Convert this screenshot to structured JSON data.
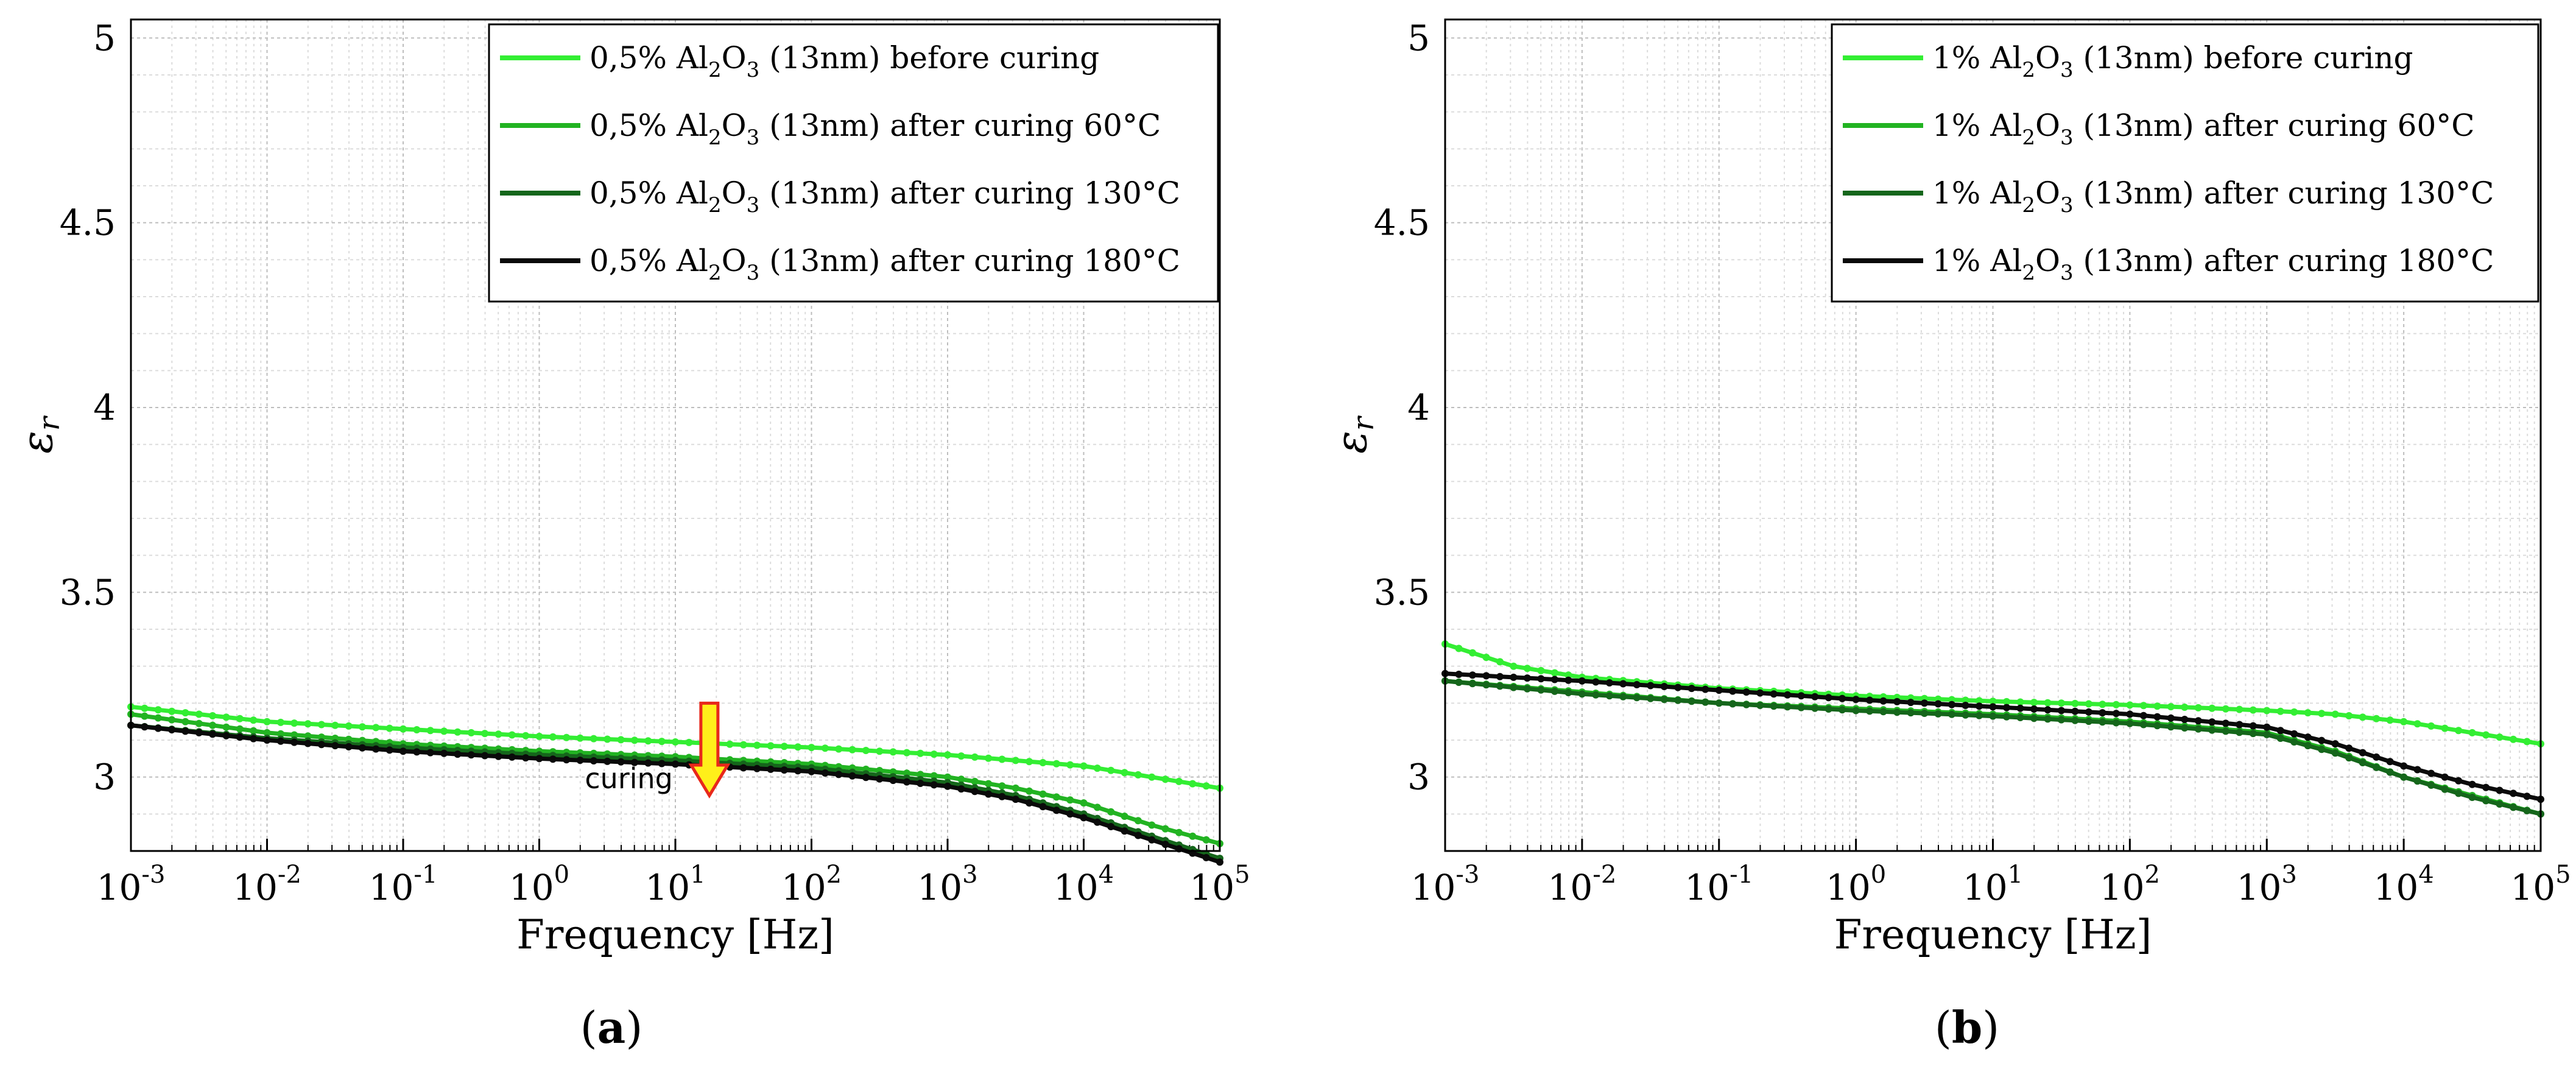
{
  "chart_data": [
    {
      "type": "line",
      "panel_label": "a",
      "xlabel": "Frequency [Hz]",
      "ylabel_symbol": "ε",
      "ylabel_subscript": "r",
      "xscale": "log",
      "xlim_exponent": [
        -3,
        5
      ],
      "ylim": [
        2.8,
        5.05
      ],
      "x_tick_exponents": [
        "-3",
        "-2",
        "-1",
        "0",
        "1",
        "2",
        "3",
        "4",
        "5"
      ],
      "y_ticks": [
        "3",
        "3.5",
        "4",
        "4.5",
        "5"
      ],
      "grid": true,
      "legend_position": "top-right",
      "annotation": {
        "text": "curing",
        "arrow": "down",
        "x_exponent": 1.25,
        "y_from": 3.2,
        "y_to": 2.95
      },
      "series": [
        {
          "name_prefix": "0,5% Al",
          "sub1": "2",
          "name_mid": "O",
          "sub2": "3",
          "name_suffix": " (13nm) before curing",
          "color": "#33ee33",
          "x_exponents": [
            -3,
            -2,
            -1,
            0,
            1,
            2,
            3,
            3.5,
            4,
            4.5,
            5
          ],
          "values": [
            3.19,
            3.15,
            3.13,
            3.11,
            3.095,
            3.08,
            3.06,
            3.045,
            3.03,
            3.0,
            2.97
          ]
        },
        {
          "name_prefix": "0,5% Al",
          "sub1": "2",
          "name_mid": "O",
          "sub2": "3",
          "name_suffix": " (13nm) after curing 60°C",
          "color": "#22b322",
          "x_exponents": [
            -3,
            -2,
            -1,
            0,
            1,
            2,
            3,
            3.5,
            4,
            4.5,
            5
          ],
          "values": [
            3.17,
            3.12,
            3.09,
            3.07,
            3.055,
            3.035,
            3.0,
            2.97,
            2.93,
            2.87,
            2.82
          ]
        },
        {
          "name_prefix": "0,5% Al",
          "sub1": "2",
          "name_mid": "O",
          "sub2": "3",
          "name_suffix": " (13nm) after curing 130°C",
          "color": "#15661b",
          "x_exponents": [
            -3,
            -2,
            -1,
            0,
            1,
            2,
            3,
            3.5,
            4,
            4.5,
            5
          ],
          "values": [
            3.14,
            3.105,
            3.08,
            3.06,
            3.045,
            3.025,
            2.985,
            2.95,
            2.9,
            2.84,
            2.78
          ]
        },
        {
          "name_prefix": "0,5% Al",
          "sub1": "2",
          "name_mid": "O",
          "sub2": "3",
          "name_suffix": " (13nm) after curing 180°C",
          "color": "#0a0a0a",
          "x_exponents": [
            -3,
            -2,
            -1,
            0,
            1,
            2,
            3,
            3.5,
            4,
            4.5,
            5
          ],
          "values": [
            3.14,
            3.1,
            3.07,
            3.05,
            3.035,
            3.015,
            2.975,
            2.94,
            2.89,
            2.83,
            2.77
          ]
        }
      ]
    },
    {
      "type": "line",
      "panel_label": "b",
      "xlabel": "Frequency [Hz]",
      "ylabel_symbol": "ε",
      "ylabel_subscript": "r",
      "xscale": "log",
      "xlim_exponent": [
        -3,
        5
      ],
      "ylim": [
        2.8,
        5.05
      ],
      "x_tick_exponents": [
        "-3",
        "-2",
        "-1",
        "0",
        "1",
        "2",
        "3",
        "4",
        "5"
      ],
      "y_ticks": [
        "3",
        "3.5",
        "4",
        "4.5",
        "5"
      ],
      "grid": true,
      "legend_position": "top-right",
      "series": [
        {
          "name_prefix": "1% Al",
          "sub1": "2",
          "name_mid": "O",
          "sub2": "3",
          "name_suffix": " (13nm) before curing",
          "color": "#33ee33",
          "x_exponents": [
            -3,
            -2.5,
            -2,
            -1,
            0,
            1,
            2,
            3,
            3.5,
            4,
            4.5,
            5
          ],
          "values": [
            3.36,
            3.3,
            3.27,
            3.24,
            3.22,
            3.205,
            3.195,
            3.18,
            3.17,
            3.15,
            3.12,
            3.09
          ]
        },
        {
          "name_prefix": "1% Al",
          "sub1": "2",
          "name_mid": "O",
          "sub2": "3",
          "name_suffix": " (13nm) after curing 60°C",
          "color": "#22b322",
          "x_exponents": [
            -3,
            -2,
            -1,
            0,
            1,
            2,
            3,
            3.5,
            4,
            4.5,
            5
          ],
          "values": [
            3.26,
            3.23,
            3.2,
            3.185,
            3.17,
            3.15,
            3.12,
            3.07,
            3.0,
            2.95,
            2.9
          ]
        },
        {
          "name_prefix": "1% Al",
          "sub1": "2",
          "name_mid": "O",
          "sub2": "3",
          "name_suffix": " (13nm) after curing 130°C",
          "color": "#15661b",
          "x_exponents": [
            -3,
            -2,
            -1,
            0,
            1,
            2,
            3,
            3.5,
            4,
            4.5,
            5
          ],
          "values": [
            3.26,
            3.225,
            3.2,
            3.18,
            3.165,
            3.145,
            3.115,
            3.065,
            3.0,
            2.945,
            2.9
          ]
        },
        {
          "name_prefix": "1% Al",
          "sub1": "2",
          "name_mid": "O",
          "sub2": "3",
          "name_suffix": " (13nm) after curing 180°C",
          "color": "#0a0a0a",
          "x_exponents": [
            -3,
            -2,
            -1,
            0,
            1,
            2,
            3,
            3.5,
            4,
            4.5,
            5
          ],
          "values": [
            3.28,
            3.26,
            3.235,
            3.21,
            3.19,
            3.17,
            3.135,
            3.09,
            3.03,
            2.98,
            2.94
          ]
        }
      ]
    }
  ]
}
